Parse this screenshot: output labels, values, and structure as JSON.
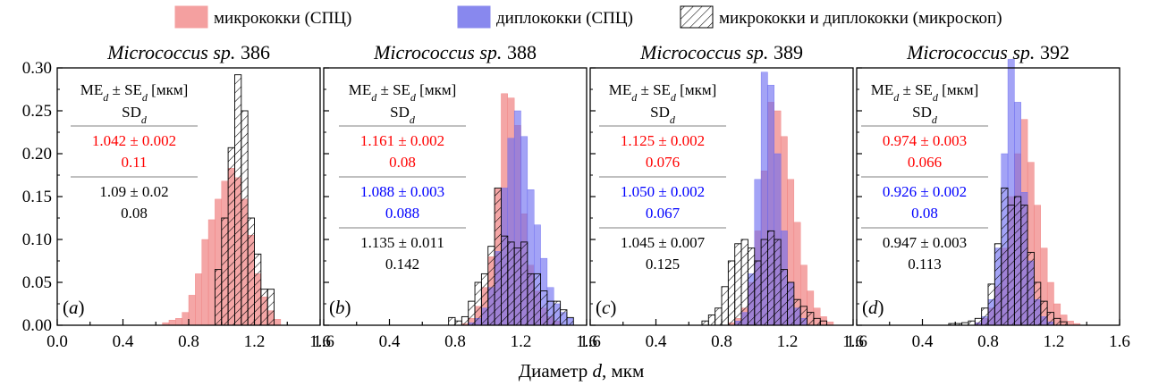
{
  "legend": {
    "series": [
      {
        "label": "микрококки (СПЦ)",
        "color": "#f4a0a0",
        "style": "fill"
      },
      {
        "label": "диплококки (СПЦ)",
        "color": "#8888ee",
        "style": "fill"
      },
      {
        "label": "микрококки и диплококки (микроскоп)",
        "color": "#000000",
        "style": "hatch"
      }
    ]
  },
  "x_label": {
    "prefix": "Диаметр ",
    "var": "d",
    "suffix": ", мкм"
  },
  "colors": {
    "micro": "#f08080",
    "diplo": "#6a6af0",
    "scope": "#000000",
    "divider": "#808080",
    "red_text": "#ff0000",
    "blue_text": "#0000ff"
  },
  "chart_data": [
    {
      "type": "bar",
      "panel_label": "a",
      "title_italic": "Micrococcus sp.",
      "title_number": "386",
      "xlim": [
        0.0,
        1.6
      ],
      "ylim": [
        0.0,
        0.3
      ],
      "xticks": [
        "0.0",
        "0.4",
        "0.8",
        "1.2",
        "1.6"
      ],
      "yticks": [
        "0.00",
        "0.05",
        "0.10",
        "0.15",
        "0.20",
        "0.25",
        "0.30"
      ],
      "bin_width": 0.04,
      "series": [
        {
          "key": "micro",
          "label": "микрококки (СПЦ)",
          "bins": [
            [
              0.64,
              0.003
            ],
            [
              0.68,
              0.006
            ],
            [
              0.72,
              0.008
            ],
            [
              0.76,
              0.015
            ],
            [
              0.8,
              0.035
            ],
            [
              0.84,
              0.06
            ],
            [
              0.88,
              0.1
            ],
            [
              0.92,
              0.123
            ],
            [
              0.96,
              0.147
            ],
            [
              1.0,
              0.168
            ],
            [
              1.04,
              0.183
            ],
            [
              1.08,
              0.172
            ],
            [
              1.12,
              0.147
            ],
            [
              1.16,
              0.105
            ],
            [
              1.2,
              0.06
            ],
            [
              1.24,
              0.033
            ],
            [
              1.28,
              0.017
            ],
            [
              1.32,
              0.007
            ]
          ]
        },
        {
          "key": "scope",
          "label": "микрококки и диплококки (микроскоп)",
          "bins": [
            [
              0.96,
              0.065
            ],
            [
              1.0,
              0.125
            ],
            [
              1.04,
              0.207
            ],
            [
              1.08,
              0.292
            ],
            [
              1.12,
              0.25
            ],
            [
              1.16,
              0.125
            ],
            [
              1.2,
              0.083
            ],
            [
              1.24,
              0.042
            ],
            [
              1.28,
              0.042
            ]
          ]
        }
      ],
      "stats_header": [
        "ME",
        "d",
        " ± SE",
        "d",
        " [мкм]",
        "SD",
        "d"
      ],
      "stats": [
        {
          "mean": "1.042 ± 0.002",
          "sd": "0.11",
          "color": "red"
        },
        {
          "mean": "1.09 ± 0.02",
          "sd": "0.08",
          "color": "black"
        }
      ]
    },
    {
      "type": "bar",
      "panel_label": "b",
      "title_italic": "Micrococcus sp.",
      "title_number": "388",
      "xlim": [
        0.0,
        1.6
      ],
      "ylim": [
        0.0,
        0.3
      ],
      "xticks": [
        "1.6",
        "0.4",
        "0.8",
        "1.2",
        "1.6"
      ],
      "yticks": [],
      "bin_width": 0.04,
      "series": [
        {
          "key": "micro",
          "label": "микрококки (СПЦ)",
          "bins": [
            [
              0.84,
              0.002
            ],
            [
              0.88,
              0.008
            ],
            [
              0.92,
              0.022
            ],
            [
              0.96,
              0.044
            ],
            [
              1.0,
              0.08
            ],
            [
              1.04,
              0.159
            ],
            [
              1.08,
              0.27
            ],
            [
              1.12,
              0.265
            ],
            [
              1.16,
              0.233
            ],
            [
              1.2,
              0.13
            ],
            [
              1.24,
              0.07
            ],
            [
              1.28,
              0.04
            ],
            [
              1.32,
              0.02
            ],
            [
              1.36,
              0.01
            ],
            [
              1.4,
              0.005
            ]
          ]
        },
        {
          "key": "diplo",
          "label": "диплококки (СПЦ)",
          "bins": [
            [
              0.88,
              0.003
            ],
            [
              0.92,
              0.008
            ],
            [
              0.96,
              0.02
            ],
            [
              1.0,
              0.044
            ],
            [
              1.04,
              0.086
            ],
            [
              1.08,
              0.16
            ],
            [
              1.12,
              0.218
            ],
            [
              1.16,
              0.25
            ],
            [
              1.2,
              0.22
            ],
            [
              1.24,
              0.158
            ],
            [
              1.28,
              0.117
            ],
            [
              1.32,
              0.078
            ],
            [
              1.36,
              0.044
            ],
            [
              1.4,
              0.025
            ],
            [
              1.44,
              0.015
            ],
            [
              1.48,
              0.008
            ]
          ]
        },
        {
          "key": "scope",
          "label": "микрококки и диплококки (микроскоп)",
          "bins": [
            [
              0.76,
              0.009
            ],
            [
              0.8,
              0.005
            ],
            [
              0.84,
              0.01
            ],
            [
              0.88,
              0.028
            ],
            [
              0.92,
              0.05
            ],
            [
              0.96,
              0.06
            ],
            [
              1.0,
              0.092
            ],
            [
              1.04,
              0.16
            ],
            [
              1.08,
              0.104
            ],
            [
              1.12,
              0.097
            ],
            [
              1.16,
              0.09
            ],
            [
              1.2,
              0.097
            ],
            [
              1.24,
              0.06
            ],
            [
              1.28,
              0.06
            ],
            [
              1.32,
              0.04
            ],
            [
              1.36,
              0.028
            ],
            [
              1.4,
              0.028
            ],
            [
              1.44,
              0.018
            ],
            [
              1.48,
              0.009
            ]
          ]
        }
      ],
      "stats_header": [
        "ME",
        "d",
        " ± SE",
        "d",
        " [мкм]",
        "SD",
        "d"
      ],
      "stats": [
        {
          "mean": "1.161 ± 0.002",
          "sd": "0.08",
          "color": "red"
        },
        {
          "mean": "1.088 ± 0.003",
          "sd": "0.088",
          "color": "blue"
        },
        {
          "mean": "1.135 ± 0.011",
          "sd": "0.142",
          "color": "black"
        }
      ]
    },
    {
      "type": "bar",
      "panel_label": "c",
      "title_italic": "Micrococcus sp.",
      "title_number": "389",
      "xlim": [
        0.0,
        1.6
      ],
      "ylim": [
        0.0,
        0.3
      ],
      "xticks": [
        "1.6",
        "0.4",
        "0.8",
        "1.2",
        "1.6"
      ],
      "yticks": [],
      "bin_width": 0.04,
      "series": [
        {
          "key": "micro",
          "label": "микрококки (СПЦ)",
          "bins": [
            [
              0.84,
              0.003
            ],
            [
              0.88,
              0.008
            ],
            [
              0.92,
              0.02
            ],
            [
              0.96,
              0.05
            ],
            [
              1.0,
              0.11
            ],
            [
              1.04,
              0.18
            ],
            [
              1.08,
              0.26
            ],
            [
              1.12,
              0.25
            ],
            [
              1.16,
              0.22
            ],
            [
              1.2,
              0.17
            ],
            [
              1.24,
              0.12
            ],
            [
              1.28,
              0.07
            ],
            [
              1.32,
              0.04
            ],
            [
              1.36,
              0.02
            ],
            [
              1.4,
              0.01
            ],
            [
              1.44,
              0.004
            ]
          ]
        },
        {
          "key": "diplo",
          "label": "диплококки (СПЦ)",
          "bins": [
            [
              0.88,
              0.005
            ],
            [
              0.92,
              0.015
            ],
            [
              0.96,
              0.06
            ],
            [
              1.0,
              0.17
            ],
            [
              1.04,
              0.295
            ],
            [
              1.08,
              0.28
            ],
            [
              1.12,
              0.2
            ],
            [
              1.16,
              0.11
            ],
            [
              1.2,
              0.05
            ],
            [
              1.24,
              0.02
            ],
            [
              1.28,
              0.008
            ]
          ]
        },
        {
          "key": "scope",
          "label": "микрококки и диплококки (микроскоп)",
          "bins": [
            [
              0.68,
              0.005
            ],
            [
              0.72,
              0.012
            ],
            [
              0.76,
              0.02
            ],
            [
              0.8,
              0.045
            ],
            [
              0.84,
              0.075
            ],
            [
              0.88,
              0.095
            ],
            [
              0.92,
              0.1
            ],
            [
              0.96,
              0.09
            ],
            [
              1.0,
              0.075
            ],
            [
              1.04,
              0.1
            ],
            [
              1.08,
              0.11
            ],
            [
              1.12,
              0.1
            ],
            [
              1.16,
              0.065
            ],
            [
              1.2,
              0.05
            ],
            [
              1.24,
              0.03
            ],
            [
              1.28,
              0.022
            ],
            [
              1.32,
              0.015
            ],
            [
              1.36,
              0.008
            ],
            [
              1.4,
              0.005
            ]
          ]
        }
      ],
      "stats_header": [
        "ME",
        "d",
        " ± SE",
        "d",
        " [мкм]",
        "SD",
        "d"
      ],
      "stats": [
        {
          "mean": "1.125 ± 0.002",
          "sd": "0.076",
          "color": "red"
        },
        {
          "mean": "1.050 ± 0.002",
          "sd": "0.067",
          "color": "blue"
        },
        {
          "mean": "1.045 ± 0.007",
          "sd": "0.125",
          "color": "black"
        }
      ]
    },
    {
      "type": "bar",
      "panel_label": "d",
      "title_italic": "Micrococcus sp.",
      "title_number": "392",
      "xlim": [
        0.0,
        1.6
      ],
      "ylim": [
        0.0,
        0.3
      ],
      "xticks": [
        "1.6",
        "0.4",
        "0.8",
        "1.2",
        "1.6"
      ],
      "yticks": [],
      "bin_width": 0.04,
      "series": [
        {
          "key": "micro",
          "label": "микрококки (СПЦ)",
          "bins": [
            [
              0.72,
              0.003
            ],
            [
              0.76,
              0.008
            ],
            [
              0.8,
              0.02
            ],
            [
              0.84,
              0.045
            ],
            [
              0.88,
              0.09
            ],
            [
              0.92,
              0.15
            ],
            [
              0.96,
              0.2
            ],
            [
              1.0,
              0.24
            ],
            [
              1.04,
              0.19
            ],
            [
              1.08,
              0.14
            ],
            [
              1.12,
              0.09
            ],
            [
              1.16,
              0.05
            ],
            [
              1.2,
              0.025
            ],
            [
              1.24,
              0.012
            ],
            [
              1.28,
              0.005
            ],
            [
              1.32,
              0.002
            ]
          ]
        },
        {
          "key": "diplo",
          "label": "диплококки (СПЦ)",
          "bins": [
            [
              0.72,
              0.003
            ],
            [
              0.76,
              0.01
            ],
            [
              0.8,
              0.03
            ],
            [
              0.84,
              0.09
            ],
            [
              0.88,
              0.2
            ],
            [
              0.92,
              0.31
            ],
            [
              0.96,
              0.26
            ],
            [
              1.0,
              0.155
            ],
            [
              1.04,
              0.075
            ],
            [
              1.08,
              0.03
            ],
            [
              1.12,
              0.01
            ],
            [
              1.16,
              0.004
            ]
          ]
        },
        {
          "key": "scope",
          "label": "микрококки и диплококки (микроскоп)",
          "bins": [
            [
              0.56,
              0.002
            ],
            [
              0.6,
              0.002
            ],
            [
              0.64,
              0.003
            ],
            [
              0.68,
              0.005
            ],
            [
              0.72,
              0.008
            ],
            [
              0.76,
              0.02
            ],
            [
              0.8,
              0.048
            ],
            [
              0.84,
              0.095
            ],
            [
              0.88,
              0.16
            ],
            [
              0.92,
              0.14
            ],
            [
              0.96,
              0.15
            ],
            [
              1.0,
              0.14
            ],
            [
              1.04,
              0.085
            ],
            [
              1.08,
              0.05
            ],
            [
              1.12,
              0.028
            ],
            [
              1.16,
              0.015
            ],
            [
              1.2,
              0.008
            ],
            [
              1.24,
              0.004
            ]
          ]
        }
      ],
      "stats_header": [
        "ME",
        "d",
        " ± SE",
        "d",
        " [мкм]",
        "SD",
        "d"
      ],
      "stats": [
        {
          "mean": "0.974 ± 0.003",
          "sd": "0.066",
          "color": "red"
        },
        {
          "mean": "0.926 ± 0.002",
          "sd": "0.08",
          "color": "blue"
        },
        {
          "mean": "0.947 ± 0.003",
          "sd": "0.113",
          "color": "black"
        }
      ]
    }
  ]
}
